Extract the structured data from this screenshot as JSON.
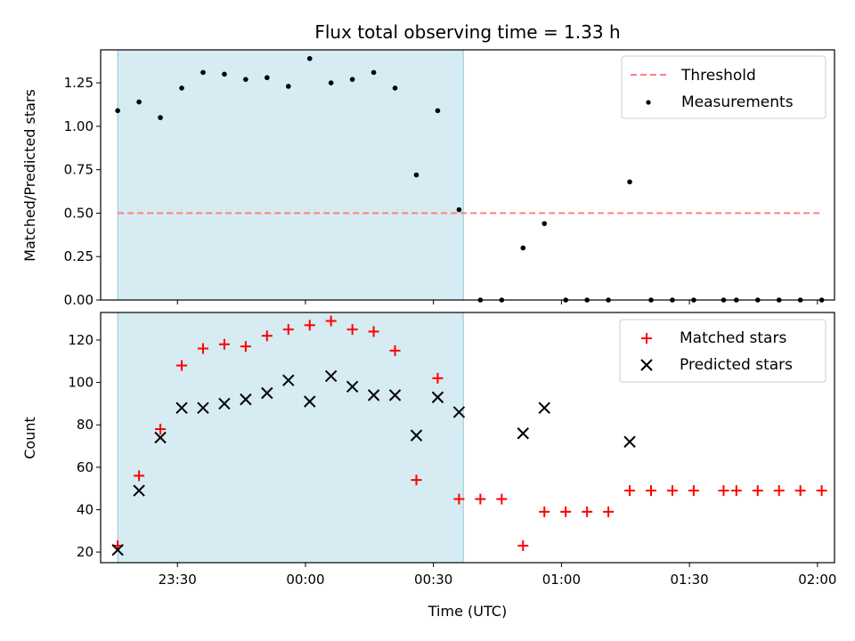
{
  "figure": {
    "title": "Flux total observing time = 1.33 h",
    "xlabel": "Time (UTC)",
    "xticks": [
      "23:30",
      "00:00",
      "00:30",
      "01:00",
      "01:30",
      "02:00"
    ]
  },
  "chart_data": [
    {
      "type": "scatter",
      "title": "Flux total observing time = 1.33 h",
      "ylabel": "Matched/Predicted stars",
      "ylim": [
        0,
        1.44
      ],
      "yticks": [
        "0.00",
        "0.25",
        "0.50",
        "0.75",
        "1.00",
        "1.25"
      ],
      "shaded_span": [
        "23:16",
        "00:37"
      ],
      "threshold": {
        "name": "Threshold",
        "value": 0.5,
        "color": "#ff7f7f",
        "style": "dashed"
      },
      "legend": {
        "placement": "top-right",
        "entries": [
          "Threshold",
          "Measurements"
        ]
      },
      "series": [
        {
          "name": "Measurements",
          "marker": "dot",
          "color": "#000000",
          "x": [
            "23:16",
            "23:21",
            "23:26",
            "23:31",
            "23:36",
            "23:41",
            "23:46",
            "23:51",
            "23:56",
            "00:01",
            "00:06",
            "00:11",
            "00:16",
            "00:21",
            "00:26",
            "00:31",
            "00:36",
            "00:41",
            "00:46",
            "00:51",
            "00:56",
            "01:01",
            "01:06",
            "01:11",
            "01:16",
            "01:21",
            "01:26",
            "01:31",
            "01:38",
            "01:41",
            "01:46",
            "01:51",
            "01:56",
            "02:01"
          ],
          "y": [
            1.09,
            1.14,
            1.05,
            1.22,
            1.31,
            1.3,
            1.27,
            1.28,
            1.23,
            1.39,
            1.25,
            1.27,
            1.31,
            1.22,
            0.72,
            1.09,
            0.52,
            0,
            0,
            0.3,
            0.44,
            0,
            0,
            0,
            0.68,
            0,
            0,
            0,
            0,
            0,
            0,
            0,
            0,
            0
          ]
        }
      ]
    },
    {
      "type": "scatter",
      "ylabel": "Count",
      "ylim": [
        15,
        133
      ],
      "yticks": [
        "20",
        "40",
        "60",
        "80",
        "100",
        "120"
      ],
      "shaded_span": [
        "23:16",
        "00:37"
      ],
      "legend": {
        "placement": "top-right",
        "entries": [
          "Matched stars",
          "Predicted stars"
        ]
      },
      "series": [
        {
          "name": "Matched stars",
          "marker": "plus",
          "color": "#ff0000",
          "x": [
            "23:16",
            "23:21",
            "23:26",
            "23:31",
            "23:36",
            "23:41",
            "23:46",
            "23:51",
            "23:56",
            "00:01",
            "00:06",
            "00:11",
            "00:16",
            "00:21",
            "00:26",
            "00:31",
            "00:36",
            "00:41",
            "00:46",
            "00:51",
            "00:56",
            "01:01",
            "01:06",
            "01:11",
            "01:16",
            "01:21",
            "01:26",
            "01:31",
            "01:38",
            "01:41",
            "01:46",
            "01:51",
            "01:56",
            "02:01"
          ],
          "y": [
            23,
            56,
            78,
            108,
            116,
            118,
            117,
            122,
            125,
            127,
            129,
            125,
            124,
            115,
            54,
            102,
            45,
            45,
            45,
            23,
            39,
            39,
            39,
            39,
            49,
            49,
            49,
            49,
            49,
            49,
            49,
            49,
            49,
            49
          ]
        },
        {
          "name": "Predicted stars",
          "marker": "x",
          "color": "#000000",
          "x": [
            "23:16",
            "23:21",
            "23:26",
            "23:31",
            "23:36",
            "23:41",
            "23:46",
            "23:51",
            "23:56",
            "00:01",
            "00:06",
            "00:11",
            "00:16",
            "00:21",
            "00:26",
            "00:31",
            "00:36",
            "00:51",
            "00:56",
            "01:16"
          ],
          "y": [
            21,
            49,
            74,
            88,
            88,
            90,
            92,
            95,
            101,
            91,
            103,
            98,
            94,
            94,
            75,
            93,
            86,
            76,
            88,
            72
          ]
        }
      ]
    }
  ]
}
